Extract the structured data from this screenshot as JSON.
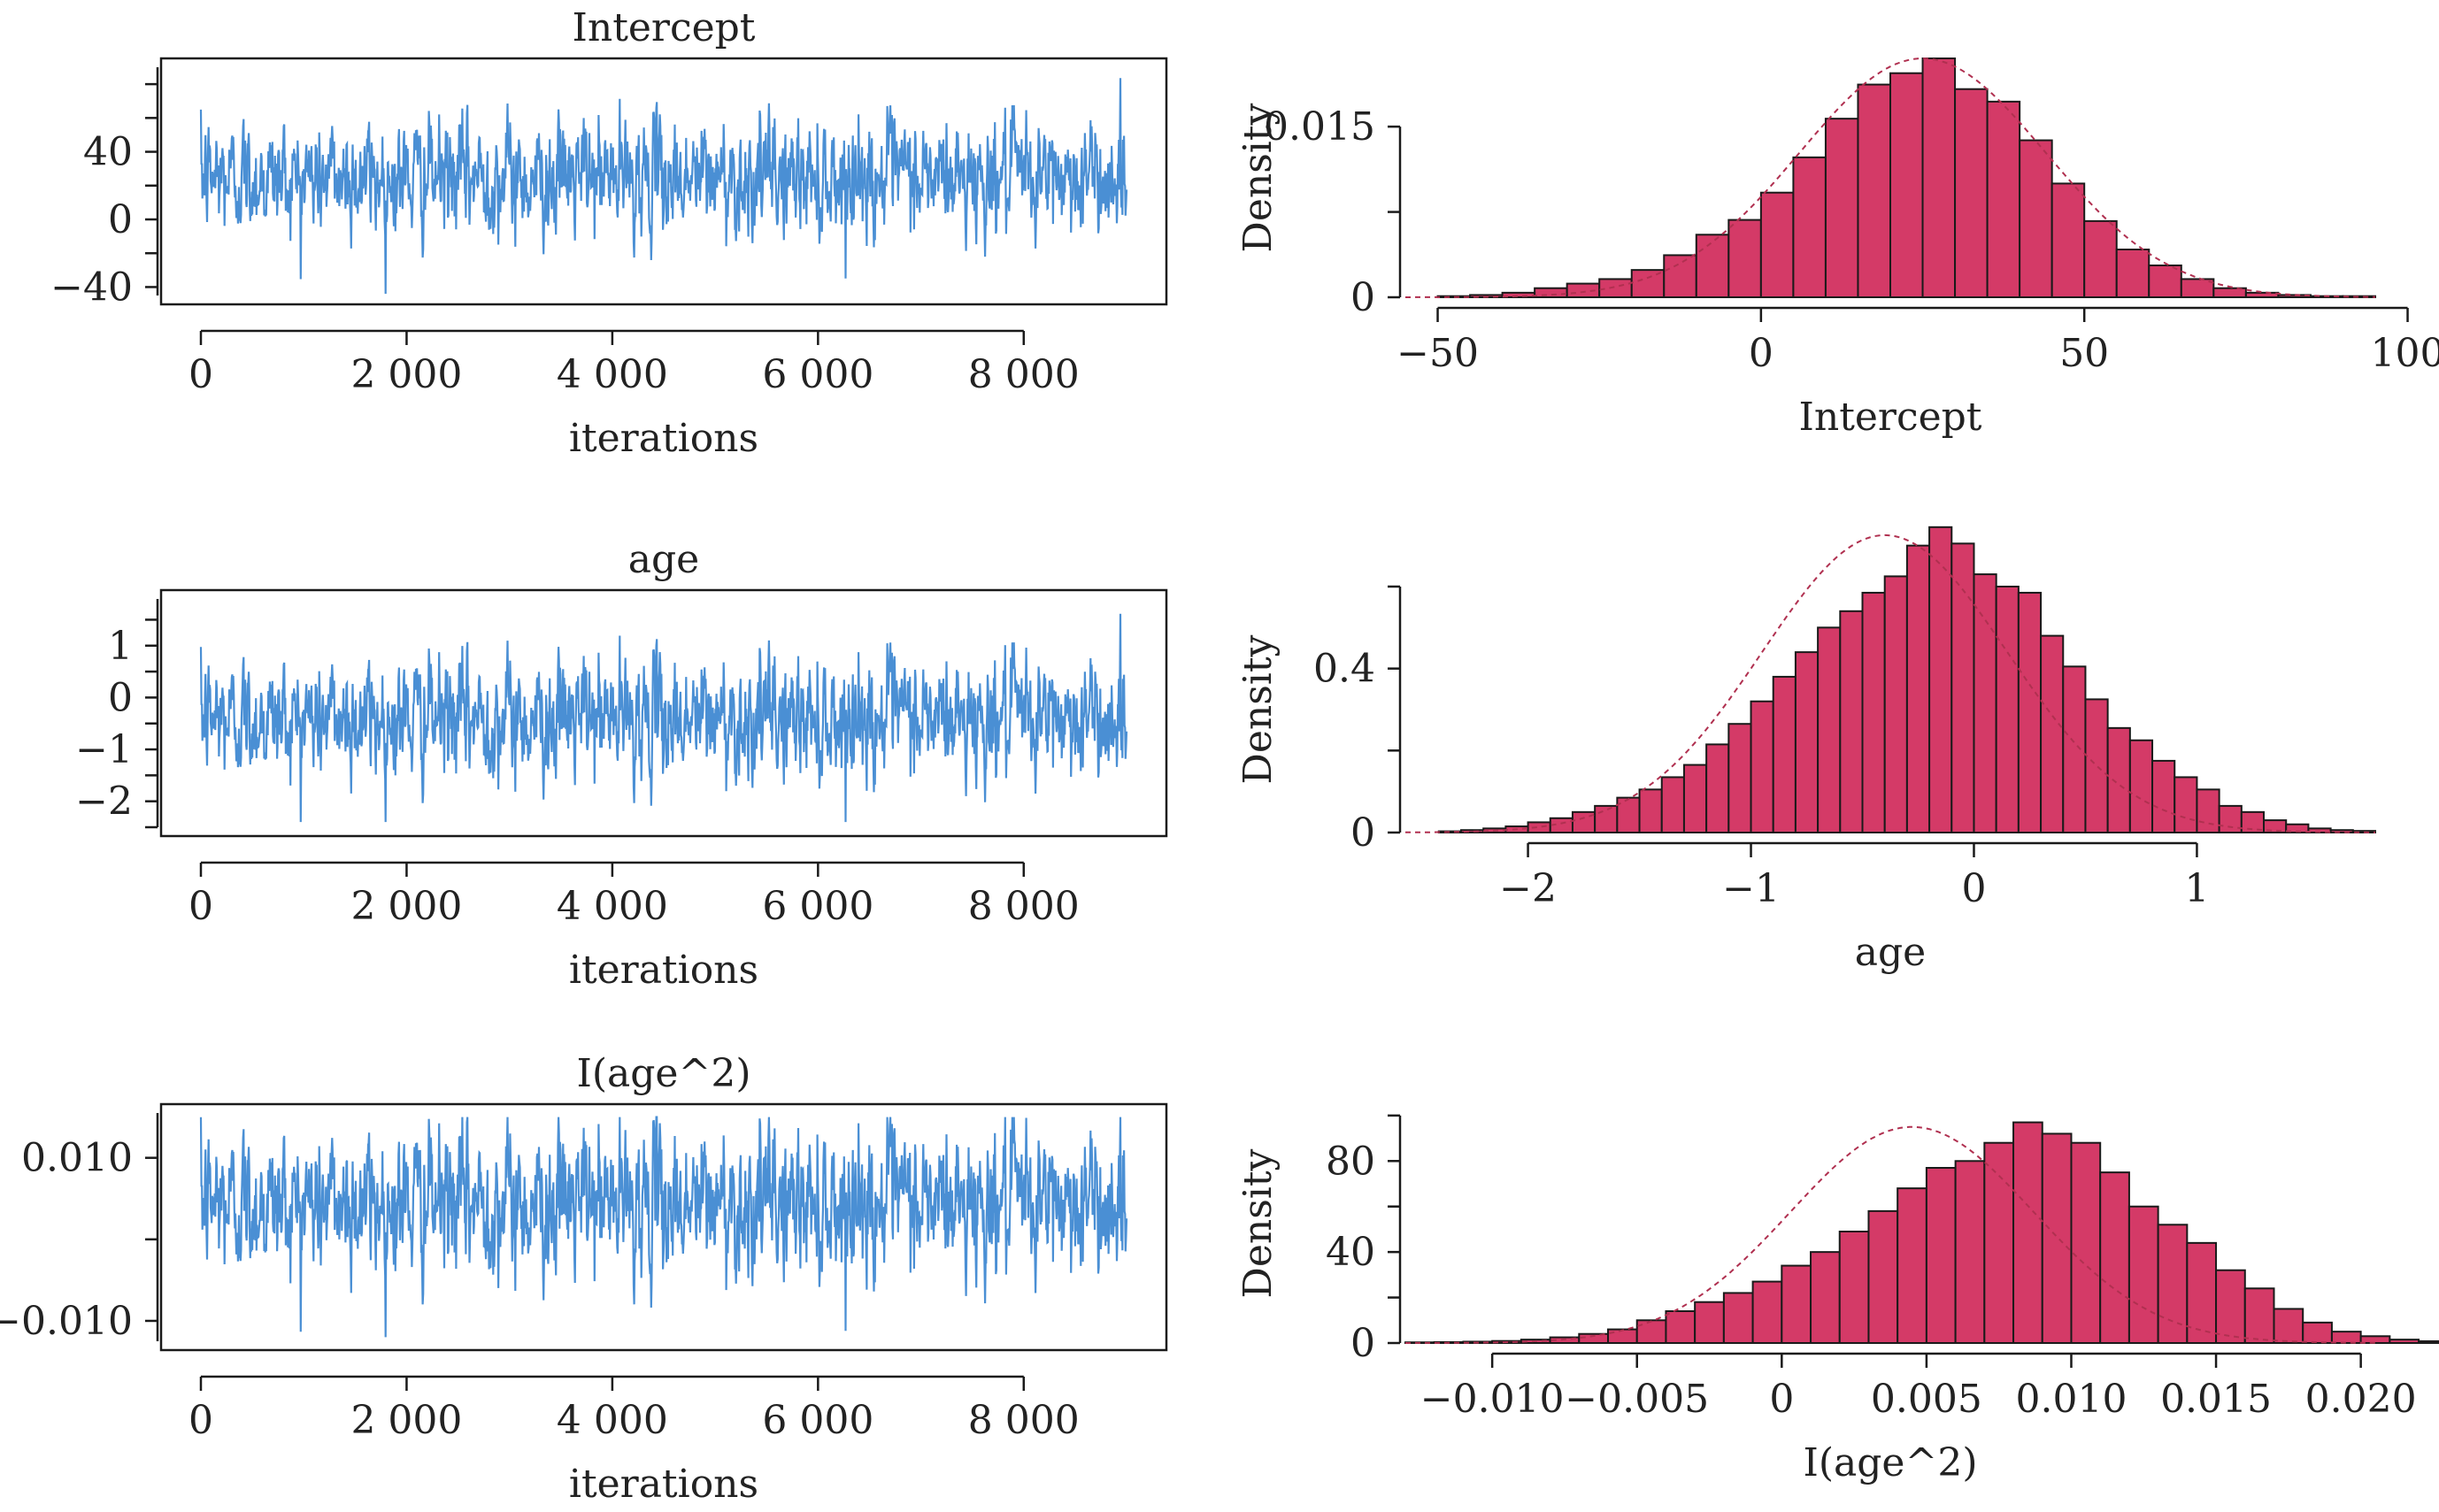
{
  "colors": {
    "trace": "#4a8fd4",
    "bars": "#d43a67",
    "bar_edge": "#1a1a1a",
    "density": "#b03050",
    "axis": "#1a1a1a"
  },
  "chart_data": [
    {
      "type": "line",
      "title": "Intercept",
      "xlabel": "iterations",
      "ylabel": "",
      "xlim": [
        0,
        9000
      ],
      "ylim": [
        -45,
        90
      ],
      "x_ticks": [
        0,
        2000,
        4000,
        6000,
        8000
      ],
      "x_tick_labels": [
        "0",
        "2 000",
        "4 000",
        "6 000",
        "8 000"
      ],
      "y_ticks": [
        -40,
        0,
        40
      ],
      "y_tick_labels": [
        "−40",
        "0",
        "40"
      ],
      "series": [
        {
          "n_iterations": 9000,
          "center": 25,
          "spread": 16,
          "min": -44,
          "max": 92
        }
      ]
    },
    {
      "type": "bar",
      "title": "",
      "xlabel": "Intercept",
      "ylabel": "Density",
      "xlim": [
        -55,
        95
      ],
      "ylim": [
        0,
        0.021
      ],
      "x_ticks": [
        -50,
        0,
        50,
        100
      ],
      "x_tick_labels": [
        "−50",
        "0",
        "50",
        "100"
      ],
      "y_ticks": [
        0,
        0.015
      ],
      "y_tick_labels": [
        "0",
        "0.015"
      ],
      "bins": {
        "start": -50,
        "width": 5,
        "density": [
          0.0001,
          0.0002,
          0.0004,
          0.0008,
          0.0012,
          0.0016,
          0.0024,
          0.0037,
          0.0055,
          0.0068,
          0.0092,
          0.0123,
          0.0157,
          0.0187,
          0.0197,
          0.021,
          0.0183,
          0.0172,
          0.0138,
          0.01,
          0.0067,
          0.0042,
          0.0028,
          0.0016,
          0.0008,
          0.0004,
          0.0002,
          0.0001,
          0.0001
        ]
      },
      "density_curve": {
        "mean": 25,
        "sd": 19
      }
    },
    {
      "type": "line",
      "title": "age",
      "xlabel": "iterations",
      "ylabel": "",
      "xlim": [
        0,
        9000
      ],
      "ylim": [
        -2.5,
        1.9
      ],
      "x_ticks": [
        0,
        2000,
        4000,
        6000,
        8000
      ],
      "x_tick_labels": [
        "0",
        "2 000",
        "4 000",
        "6 000",
        "8 000"
      ],
      "y_ticks": [
        -2,
        -1,
        0,
        1
      ],
      "y_tick_labels": [
        "−2",
        "−1",
        "0",
        "1"
      ],
      "series": [
        {
          "n_iterations": 9000,
          "center": -0.4,
          "spread": 0.55,
          "min": -2.4,
          "max": 1.8
        }
      ]
    },
    {
      "type": "bar",
      "title": "",
      "xlabel": "age",
      "ylabel": "Density",
      "xlim": [
        -2.55,
        1.8
      ],
      "ylim": [
        0,
        0.6
      ],
      "x_ticks": [
        -2,
        -1,
        0,
        1
      ],
      "x_tick_labels": [
        "−2",
        "−1",
        "0",
        "1"
      ],
      "y_ticks": [
        0,
        0.4
      ],
      "y_tick_labels": [
        "0",
        "0.4"
      ],
      "bins": {
        "start": -2.4,
        "width": 0.1,
        "density": [
          0.003,
          0.006,
          0.01,
          0.015,
          0.025,
          0.035,
          0.05,
          0.065,
          0.085,
          0.105,
          0.135,
          0.165,
          0.215,
          0.265,
          0.32,
          0.38,
          0.44,
          0.5,
          0.54,
          0.585,
          0.625,
          0.7,
          0.745,
          0.705,
          0.63,
          0.6,
          0.585,
          0.48,
          0.405,
          0.325,
          0.255,
          0.225,
          0.175,
          0.135,
          0.105,
          0.065,
          0.05,
          0.03,
          0.02,
          0.01,
          0.006,
          0.004
        ]
      },
      "density_curve": {
        "mean": -0.4,
        "sd": 0.55
      }
    },
    {
      "type": "line",
      "title": "I(age^2)",
      "xlabel": "iterations",
      "ylabel": "",
      "xlim": [
        0,
        9000
      ],
      "ylim": [
        -0.0125,
        0.0155
      ],
      "x_ticks": [
        0,
        2000,
        4000,
        6000,
        8000
      ],
      "x_tick_labels": [
        "0",
        "2 000",
        "4 000",
        "6 000",
        "8 000"
      ],
      "y_ticks": [
        -0.01,
        0.01
      ],
      "y_tick_labels": [
        "−0.010",
        "0.010"
      ],
      "series": [
        {
          "n_iterations": 9000,
          "center": 0.0045,
          "spread": 0.0042,
          "min": -0.012,
          "max": 0.015
        }
      ]
    },
    {
      "type": "bar",
      "title": "",
      "xlabel": "I(age^2)",
      "ylabel": "Density",
      "xlim": [
        -0.013,
        0.0205
      ],
      "ylim": [
        0,
        105
      ],
      "x_ticks": [
        -0.01,
        -0.005,
        0,
        0.005,
        0.01,
        0.015,
        0.02
      ],
      "x_tick_labels": [
        "−0.010",
        "−0.005",
        "0",
        "0.005",
        "0.010",
        "0.015",
        "0.020"
      ],
      "y_ticks": [
        0,
        40,
        80
      ],
      "y_tick_labels": [
        "0",
        "40",
        "80"
      ],
      "bins": {
        "start": -0.013,
        "width": 0.001,
        "density": [
          0.3,
          0.4,
          0.6,
          0.9,
          1.5,
          2.5,
          4,
          6,
          10,
          14,
          18,
          22,
          27,
          34,
          40,
          49,
          58,
          68,
          77,
          80,
          88,
          97,
          92,
          88,
          75,
          60,
          52,
          44,
          32,
          24,
          15,
          9,
          5,
          3,
          1.5,
          0.8,
          0.5,
          0.3,
          0.2
        ]
      },
      "density_curve": {
        "mean": 0.0045,
        "sd": 0.0042
      }
    }
  ]
}
